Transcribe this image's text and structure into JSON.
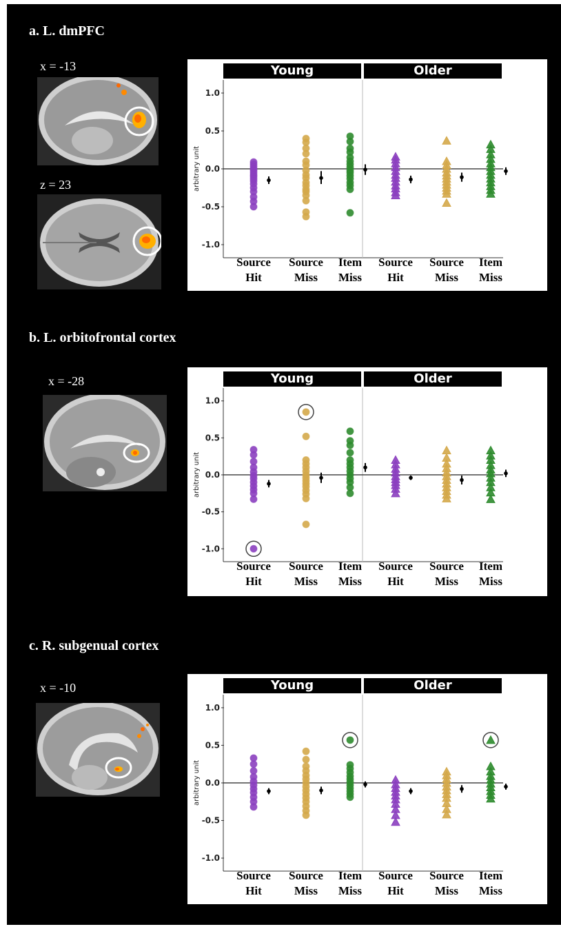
{
  "panels": [
    {
      "title": "a. L. dmPFC",
      "images": [
        {
          "coord": "x = -13",
          "view": "sagittal",
          "icon": "brain-sagittal-scan"
        },
        {
          "coord": "z = 23",
          "view": "axial",
          "icon": "brain-axial-scan"
        }
      ]
    },
    {
      "title": "b. L. orbitofrontal cortex",
      "images": [
        {
          "coord": "x = -28",
          "view": "sagittal",
          "icon": "brain-sagittal-scan"
        }
      ]
    },
    {
      "title": "c. R. subgenual cortex",
      "images": [
        {
          "coord": "x = -10",
          "view": "sagittal",
          "icon": "brain-sagittal-scan"
        }
      ]
    }
  ],
  "chart_data": [
    {
      "type": "scatter",
      "facets": [
        "Young",
        "Older"
      ],
      "categories": [
        "Source Hit",
        "Source Miss",
        "Item Miss"
      ],
      "ylabel": "arbitrary unit",
      "ylim": [
        -1.1,
        1.1
      ],
      "yticks": [
        "1.0",
        "0.5",
        "0.0",
        "-0.5",
        "-1.0"
      ],
      "series": [
        {
          "facet": "Young",
          "category": "Source Hit",
          "color": "#8b3fbf",
          "marker": "circle",
          "points": [
            0.09,
            0.06,
            0.03,
            0.0,
            -0.02,
            -0.05,
            -0.08,
            -0.1,
            -0.13,
            -0.16,
            -0.2,
            -0.25,
            -0.3,
            -0.37,
            -0.43,
            -0.5
          ],
          "mean": -0.15,
          "ci": [
            -0.2,
            -0.1
          ]
        },
        {
          "facet": "Young",
          "category": "Source Miss",
          "color": "#d4a84a",
          "marker": "circle",
          "points": [
            0.4,
            0.35,
            0.27,
            0.2,
            0.1,
            0.05,
            -0.02,
            -0.08,
            -0.12,
            -0.18,
            -0.22,
            -0.27,
            -0.3,
            -0.35,
            -0.42,
            -0.57,
            -0.63
          ],
          "mean": -0.12,
          "ci": [
            -0.2,
            -0.03
          ]
        },
        {
          "facet": "Young",
          "category": "Item Miss",
          "color": "#2e8b2e",
          "marker": "circle",
          "points": [
            0.43,
            0.36,
            0.27,
            0.22,
            0.15,
            0.1,
            0.06,
            0.02,
            -0.02,
            -0.05,
            -0.09,
            -0.13,
            -0.18,
            -0.22,
            -0.27,
            -0.58
          ],
          "mean": -0.01,
          "ci": [
            -0.08,
            0.06
          ]
        },
        {
          "facet": "Older",
          "category": "Source Hit",
          "color": "#8b3fbf",
          "marker": "triangle",
          "points": [
            0.16,
            0.12,
            0.07,
            0.02,
            -0.03,
            -0.08,
            -0.12,
            -0.17,
            -0.22,
            -0.26,
            -0.31,
            -0.35
          ],
          "mean": -0.14,
          "ci": [
            -0.19,
            -0.09
          ]
        },
        {
          "facet": "Older",
          "category": "Source Miss",
          "color": "#d4a84a",
          "marker": "triangle",
          "points": [
            0.37,
            0.1,
            0.05,
            0.0,
            -0.05,
            -0.09,
            -0.13,
            -0.17,
            -0.21,
            -0.25,
            -0.29,
            -0.33,
            -0.45
          ],
          "mean": -0.11,
          "ci": [
            -0.17,
            -0.05
          ]
        },
        {
          "facet": "Older",
          "category": "Item Miss",
          "color": "#2e8b2e",
          "marker": "triangle",
          "points": [
            0.32,
            0.26,
            0.19,
            0.13,
            0.07,
            0.02,
            -0.03,
            -0.08,
            -0.13,
            -0.18,
            -0.23,
            -0.28,
            -0.33
          ],
          "mean": -0.03,
          "ci": [
            -0.08,
            0.02
          ]
        }
      ],
      "highlighted": []
    },
    {
      "type": "scatter",
      "facets": [
        "Young",
        "Older"
      ],
      "categories": [
        "Source Hit",
        "Source Miss",
        "Item Miss"
      ],
      "ylabel": "arbitrary unit",
      "ylim": [
        -1.1,
        1.1
      ],
      "yticks": [
        "1.0",
        "0.5",
        "0.0",
        "-0.5",
        "-1.0"
      ],
      "series": [
        {
          "facet": "Young",
          "category": "Source Hit",
          "color": "#8b3fbf",
          "marker": "circle",
          "points": [
            0.34,
            0.27,
            0.18,
            0.1,
            0.04,
            -0.01,
            -0.05,
            -0.1,
            -0.15,
            -0.2,
            -0.25,
            -0.33,
            -1.0
          ],
          "mean": -0.12,
          "ci": [
            -0.17,
            -0.07
          ]
        },
        {
          "facet": "Young",
          "category": "Source Miss",
          "color": "#d4a84a",
          "marker": "circle",
          "points": [
            0.85,
            0.52,
            0.2,
            0.15,
            0.1,
            0.05,
            0.0,
            -0.04,
            -0.08,
            -0.12,
            -0.16,
            -0.21,
            -0.26,
            -0.32,
            -0.67
          ],
          "mean": -0.04,
          "ci": [
            -0.11,
            0.03
          ]
        },
        {
          "facet": "Young",
          "category": "Item Miss",
          "color": "#2e8b2e",
          "marker": "circle",
          "points": [
            0.59,
            0.46,
            0.4,
            0.3,
            0.2,
            0.15,
            0.1,
            0.05,
            0.0,
            -0.05,
            -0.1,
            -0.17,
            -0.25
          ],
          "mean": 0.1,
          "ci": [
            0.04,
            0.16
          ]
        },
        {
          "facet": "Older",
          "category": "Source Hit",
          "color": "#8b3fbf",
          "marker": "triangle",
          "points": [
            0.2,
            0.14,
            0.08,
            0.03,
            -0.02,
            -0.06,
            -0.1,
            -0.14,
            -0.19,
            -0.25
          ],
          "mean": -0.04,
          "ci": [
            -0.07,
            -0.01
          ]
        },
        {
          "facet": "Older",
          "category": "Source Miss",
          "color": "#d4a84a",
          "marker": "triangle",
          "points": [
            0.33,
            0.23,
            0.15,
            0.09,
            0.03,
            -0.02,
            -0.07,
            -0.12,
            -0.17,
            -0.22,
            -0.27,
            -0.32
          ],
          "mean": -0.07,
          "ci": [
            -0.13,
            -0.01
          ]
        },
        {
          "facet": "Older",
          "category": "Item Miss",
          "color": "#2e8b2e",
          "marker": "triangle",
          "points": [
            0.33,
            0.26,
            0.2,
            0.13,
            0.07,
            0.02,
            -0.04,
            -0.1,
            -0.17,
            -0.24,
            -0.33
          ],
          "mean": 0.02,
          "ci": [
            -0.03,
            0.07
          ]
        }
      ],
      "highlighted": [
        {
          "category": "Source Hit",
          "facet": "Young",
          "value": -1.0
        },
        {
          "category": "Source Miss",
          "facet": "Young",
          "value": 0.85
        }
      ]
    },
    {
      "type": "scatter",
      "facets": [
        "Young",
        "Older"
      ],
      "categories": [
        "Source Hit",
        "Source Miss",
        "Item Miss"
      ],
      "ylabel": "arbitrary unit",
      "ylim": [
        -1.1,
        1.1
      ],
      "yticks": [
        "1.0",
        "0.5",
        "0.0",
        "-0.5",
        "-1.0"
      ],
      "series": [
        {
          "facet": "Young",
          "category": "Source Hit",
          "color": "#8b3fbf",
          "marker": "circle",
          "points": [
            0.33,
            0.25,
            0.16,
            0.08,
            0.02,
            -0.03,
            -0.08,
            -0.13,
            -0.19,
            -0.25,
            -0.32
          ],
          "mean": -0.11,
          "ci": [
            -0.15,
            -0.07
          ]
        },
        {
          "facet": "Young",
          "category": "Source Miss",
          "color": "#d4a84a",
          "marker": "circle",
          "points": [
            0.42,
            0.31,
            0.22,
            0.16,
            0.1,
            0.05,
            0.0,
            -0.05,
            -0.1,
            -0.15,
            -0.2,
            -0.25,
            -0.31,
            -0.37,
            -0.43
          ],
          "mean": -0.1,
          "ci": [
            -0.15,
            -0.05
          ]
        },
        {
          "facet": "Young",
          "category": "Item Miss",
          "color": "#2e8b2e",
          "marker": "circle",
          "points": [
            0.57,
            0.24,
            0.19,
            0.14,
            0.09,
            0.05,
            0.01,
            -0.03,
            -0.07,
            -0.11,
            -0.15,
            -0.19
          ],
          "mean": -0.02,
          "ci": [
            -0.06,
            0.02
          ]
        },
        {
          "facet": "Older",
          "category": "Source Hit",
          "color": "#8b3fbf",
          "marker": "triangle",
          "points": [
            0.04,
            -0.02,
            -0.07,
            -0.12,
            -0.17,
            -0.22,
            -0.28,
            -0.35,
            -0.43,
            -0.52
          ],
          "mean": -0.11,
          "ci": [
            -0.15,
            -0.07
          ]
        },
        {
          "facet": "Older",
          "category": "Source Miss",
          "color": "#d4a84a",
          "marker": "triangle",
          "points": [
            0.15,
            0.1,
            0.05,
            0.0,
            -0.05,
            -0.1,
            -0.15,
            -0.2,
            -0.27,
            -0.35,
            -0.42
          ],
          "mean": -0.08,
          "ci": [
            -0.13,
            -0.03
          ]
        },
        {
          "facet": "Older",
          "category": "Item Miss",
          "color": "#2e8b2e",
          "marker": "triangle",
          "points": [
            0.57,
            0.22,
            0.15,
            0.09,
            0.04,
            -0.01,
            -0.06,
            -0.11,
            -0.16,
            -0.21
          ],
          "mean": -0.05,
          "ci": [
            -0.09,
            -0.01
          ]
        }
      ],
      "highlighted": [
        {
          "category": "Item Miss",
          "facet": "Young",
          "value": 0.57
        },
        {
          "category": "Item Miss",
          "facet": "Older",
          "value": 0.57
        }
      ]
    }
  ]
}
